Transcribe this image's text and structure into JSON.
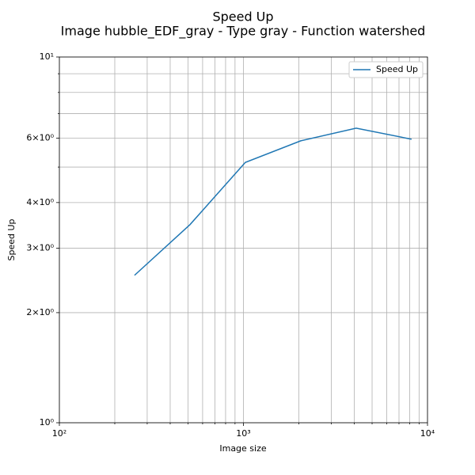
{
  "chart_data": {
    "type": "line",
    "title": "Speed Up",
    "subtitle": "Image hubble_EDF_gray - Type gray - Function watershed",
    "x_label": "Image size",
    "y_label": "Speed Up",
    "x": [
      256,
      512,
      1024,
      2048,
      4096,
      8192
    ],
    "series": [
      {
        "name": "Speed Up",
        "color": "#1f77b4",
        "values": [
          2.53,
          3.48,
          5.15,
          5.9,
          6.39,
          5.96
        ]
      }
    ],
    "xscale": "log",
    "yscale": "log",
    "xlim": [
      100,
      10000
    ],
    "ylim": [
      1,
      10
    ],
    "xticks": [
      {
        "value": 100,
        "label": "10²"
      },
      {
        "value": 1000,
        "label": "10³"
      },
      {
        "value": 10000,
        "label": "10⁴"
      }
    ],
    "xticks_minor": [
      200,
      300,
      400,
      500,
      600,
      700,
      800,
      900,
      2000,
      3000,
      4000,
      5000,
      6000,
      7000,
      8000,
      9000
    ],
    "yticks": [
      {
        "value": 1,
        "label": "10⁰"
      },
      {
        "value": 2,
        "label": "2×10⁰"
      },
      {
        "value": 3,
        "label": "3×10⁰"
      },
      {
        "value": 4,
        "label": "4×10⁰"
      },
      {
        "value": 6,
        "label": "6×10⁰"
      },
      {
        "value": 10,
        "label": "10¹"
      }
    ],
    "yticks_minor": [
      5,
      7,
      8,
      9
    ],
    "grid": true,
    "legend": "upper right"
  }
}
